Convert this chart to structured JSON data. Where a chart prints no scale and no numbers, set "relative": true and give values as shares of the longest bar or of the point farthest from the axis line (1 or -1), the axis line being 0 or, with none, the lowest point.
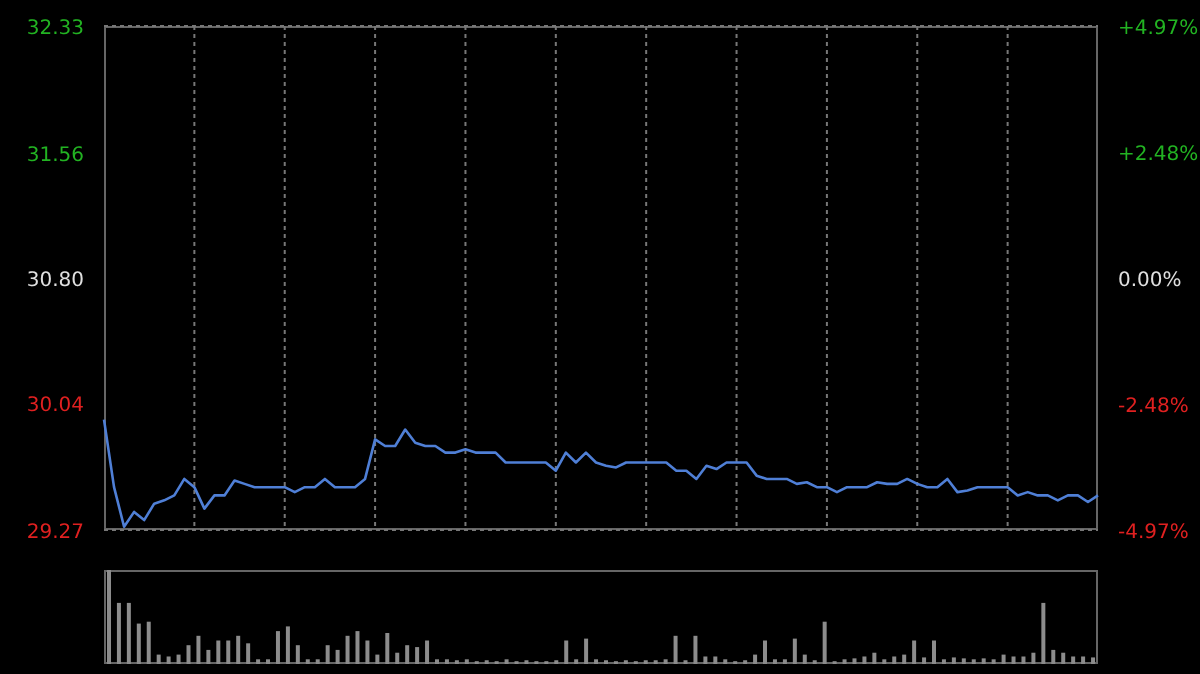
{
  "chart_data": [
    {
      "type": "line",
      "categories": [
        null,
        null,
        null,
        null,
        null,
        null,
        null,
        null,
        null,
        null,
        null,
        null,
        null,
        null,
        null,
        null,
        null,
        null,
        null,
        null,
        null,
        null,
        null,
        null,
        null,
        null,
        null,
        null,
        null,
        null,
        null,
        null,
        null,
        null,
        null,
        null,
        null,
        null,
        null,
        null,
        null,
        null,
        null,
        null,
        null,
        null,
        null,
        null,
        null,
        null,
        null,
        null,
        null,
        null,
        null,
        null,
        null,
        null,
        null,
        null,
        null,
        null,
        null,
        null,
        null,
        null,
        null,
        null,
        null,
        null,
        null,
        null,
        null,
        null,
        null,
        null,
        null,
        null,
        null,
        null,
        null,
        null,
        null,
        null,
        null,
        null,
        null,
        null,
        null,
        null,
        null,
        null,
        null,
        null,
        null,
        null,
        null,
        null,
        null,
        null
      ],
      "series": [
        {
          "color": "#4f7fd6",
          "values": [
            29.94,
            29.53,
            29.29,
            29.38,
            29.33,
            29.43,
            29.45,
            29.48,
            29.58,
            29.53,
            29.4,
            29.48,
            29.48,
            29.57,
            29.55,
            29.53,
            29.53,
            29.53,
            29.53,
            29.5,
            29.53,
            29.53,
            29.58,
            29.53,
            29.53,
            29.53,
            29.58,
            29.82,
            29.78,
            29.78,
            29.88,
            29.8,
            29.78,
            29.78,
            29.74,
            29.74,
            29.76,
            29.74,
            29.74,
            29.74,
            29.68,
            29.68,
            29.68,
            29.68,
            29.68,
            29.63,
            29.74,
            29.68,
            29.74,
            29.68,
            29.66,
            29.65,
            29.68,
            29.68,
            29.68,
            29.68,
            29.68,
            29.63,
            29.63,
            29.58,
            29.66,
            29.64,
            29.68,
            29.68,
            29.68,
            29.6,
            29.58,
            29.58,
            29.58,
            29.55,
            29.56,
            29.53,
            29.53,
            29.5,
            29.53,
            29.53,
            29.53,
            29.56,
            29.55,
            29.55,
            29.58,
            29.55,
            29.53,
            29.53,
            29.58,
            29.5,
            29.51,
            29.53,
            29.53,
            29.53,
            29.53,
            29.48,
            29.5,
            29.48,
            29.48,
            29.45,
            29.48,
            29.48,
            29.44,
            29.48
          ]
        }
      ],
      "ylim": [
        29.27,
        32.33
      ],
      "yticks": [
        29.27,
        30.04,
        {
          "value": 30.8,
          "label": "30.80"
        },
        31.56,
        32.33
      ],
      "y2lim": [
        -4.97,
        4.97
      ],
      "y2ticks": [
        {
          "value": -4.97,
          "label": "-4.97%"
        },
        {
          "value": -2.48,
          "label": "-2.48%"
        },
        {
          "value": 0,
          "label": "0.00%"
        },
        {
          "value": 2.48,
          "label": "+2.48%"
        },
        {
          "value": 4.97,
          "label": "+4.97%"
        }
      ],
      "grid": true
    },
    {
      "type": "bar",
      "relative": true,
      "color": "#8c8c8c",
      "categories": [
        null,
        null,
        null,
        null,
        null,
        null,
        null,
        null,
        null,
        null,
        null,
        null,
        null,
        null,
        null,
        null,
        null,
        null,
        null,
        null,
        null,
        null,
        null,
        null,
        null,
        null,
        null,
        null,
        null,
        null,
        null,
        null,
        null,
        null,
        null,
        null,
        null,
        null,
        null,
        null,
        null,
        null,
        null,
        null,
        null,
        null,
        null,
        null,
        null,
        null,
        null,
        null,
        null,
        null,
        null,
        null,
        null,
        null,
        null,
        null,
        null,
        null,
        null,
        null,
        null,
        null,
        null,
        null,
        null,
        null,
        null,
        null,
        null,
        null,
        null,
        null,
        null,
        null,
        null,
        null,
        null,
        null,
        null,
        null,
        null,
        null,
        null,
        null,
        null,
        null,
        null,
        null,
        null,
        null,
        null,
        null,
        null,
        null,
        null,
        null
      ],
      "values": [
        1,
        0.65,
        0.65,
        0.43,
        0.45,
        0.1,
        0.08,
        0.1,
        0.2,
        0.3,
        0.15,
        0.25,
        0.25,
        0.3,
        0.22,
        0.05,
        0.05,
        0.35,
        0.4,
        0.2,
        0.05,
        0.05,
        0.2,
        0.15,
        0.3,
        0.35,
        0.25,
        0.1,
        0.33,
        0.12,
        0.2,
        0.18,
        0.25,
        0.05,
        0.05,
        0.04,
        0.05,
        0.03,
        0.04,
        0.03,
        0.05,
        0.03,
        0.04,
        0.03,
        0.03,
        0.04,
        0.25,
        0.05,
        0.27,
        0.05,
        0.04,
        0.03,
        0.04,
        0.03,
        0.04,
        0.04,
        0.05,
        0.3,
        0.04,
        0.3,
        0.08,
        0.08,
        0.05,
        0.03,
        0.04,
        0.1,
        0.25,
        0.05,
        0.05,
        0.27,
        0.1,
        0.04,
        0.45,
        0.03,
        0.05,
        0.06,
        0.08,
        0.12,
        0.05,
        0.08,
        0.1,
        0.25,
        0.07,
        0.25,
        0.05,
        0.07,
        0.06,
        0.05,
        0.06,
        0.05,
        0.1,
        0.08,
        0.08,
        0.12,
        0.65,
        0.15,
        0.12,
        0.08,
        0.08,
        0.07
      ]
    }
  ]
}
